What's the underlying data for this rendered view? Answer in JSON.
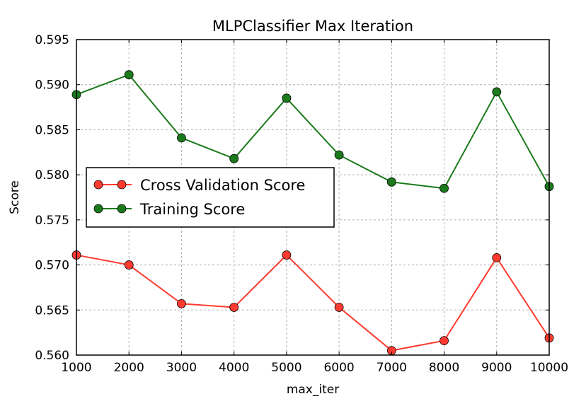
{
  "chart_data": {
    "type": "line",
    "title": "MLPClassifier Max Iteration",
    "xlabel": "max_iter",
    "ylabel": "Score",
    "x": [
      1000,
      2000,
      3000,
      4000,
      5000,
      6000,
      7000,
      8000,
      9000,
      10000
    ],
    "xlim": [
      1000,
      10000
    ],
    "ylim": [
      0.56,
      0.595
    ],
    "xticks": [
      1000,
      2000,
      3000,
      4000,
      5000,
      6000,
      7000,
      8000,
      9000,
      10000
    ],
    "xtick_labels": [
      "1000",
      "2000",
      "3000",
      "4000",
      "5000",
      "6000",
      "7000",
      "8000",
      "9000",
      "10000"
    ],
    "yticks": [
      0.56,
      0.565,
      0.57,
      0.575,
      0.58,
      0.585,
      0.59,
      0.595
    ],
    "ytick_labels": [
      "0.560",
      "0.565",
      "0.570",
      "0.575",
      "0.580",
      "0.585",
      "0.590",
      "0.595"
    ],
    "grid": true,
    "legend_position": "center-left",
    "series": [
      {
        "name": "Cross Validation Score",
        "color": "#ff3b30",
        "values": [
          0.5711,
          0.57,
          0.5657,
          0.5653,
          0.5711,
          0.5653,
          0.5605,
          0.5616,
          0.5708,
          0.5619
        ]
      },
      {
        "name": "Training Score",
        "color": "#1b7a1b",
        "values": [
          0.5889,
          0.5911,
          0.5841,
          0.5818,
          0.5885,
          0.5822,
          0.5792,
          0.5785,
          0.5892,
          0.5787
        ]
      }
    ]
  }
}
